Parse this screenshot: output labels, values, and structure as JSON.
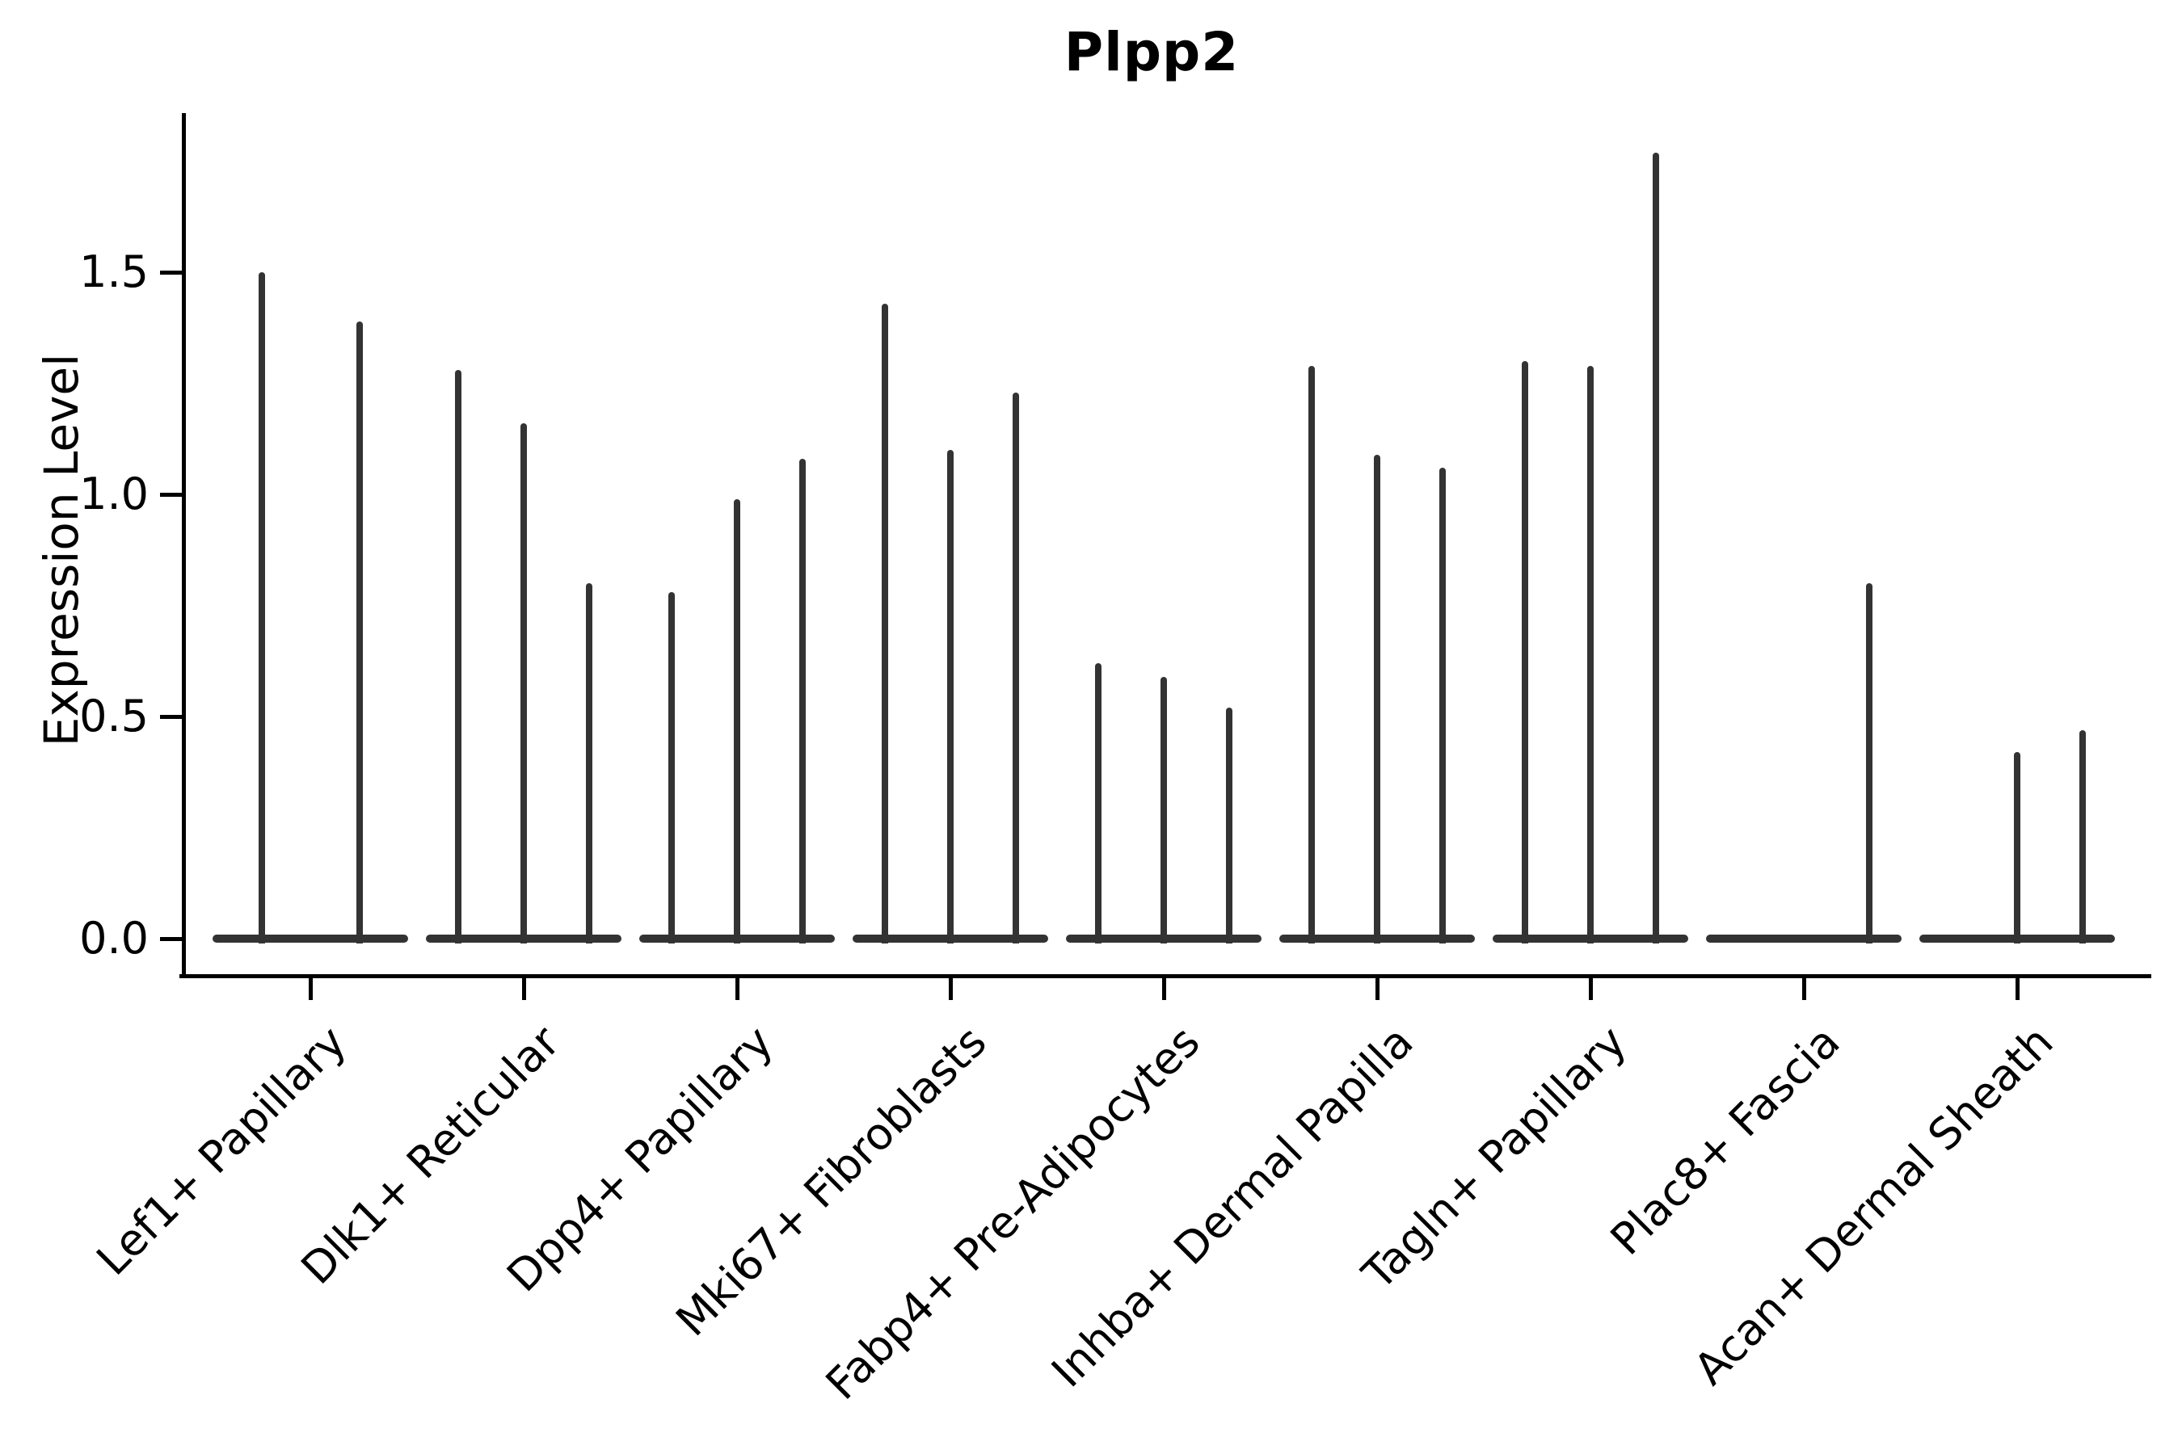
{
  "title": "Plpp2",
  "y_axis": {
    "label": "Expression Level",
    "tick_labels": [
      "0.0",
      "0.5",
      "1.0",
      "1.5"
    ]
  },
  "chart_data": {
    "type": "violin",
    "title": "Plpp2",
    "ylabel": "Expression Level",
    "xlabel": "",
    "ylim": [
      0,
      1.86
    ],
    "yticks": [
      0.0,
      0.5,
      1.0,
      1.5
    ],
    "ytick_labels": [
      "0.0",
      "0.5",
      "1.0",
      "1.5"
    ],
    "grid": false,
    "legend_position": "none",
    "categories": [
      "Lef1+ Papillary",
      "Dlk1+ Reticular",
      "Dpp4+ Papillary",
      "Mki67+ Fibroblasts",
      "Fabp4+ Pre-Adipocytes",
      "Inhba+ Dermal Papilla",
      "Tagln+ Papillary",
      "Plac8+ Fascia",
      "Acan+ Dermal Sheath"
    ],
    "groups": [
      {
        "category": "Lef1+ Papillary",
        "violin_max_values": [
          1.5,
          1.39
        ]
      },
      {
        "category": "Dlk1+ Reticular",
        "violin_max_values": [
          1.28,
          1.16,
          0.8
        ]
      },
      {
        "category": "Dpp4+ Papillary",
        "violin_max_values": [
          0.78,
          0.99,
          1.08
        ]
      },
      {
        "category": "Mki67+ Fibroblasts",
        "violin_max_values": [
          1.43,
          1.1,
          1.23
        ]
      },
      {
        "category": "Fabp4+ Pre-Adipocytes",
        "violin_max_values": [
          0.62,
          0.59,
          0.52
        ]
      },
      {
        "category": "Inhba+ Dermal Papilla",
        "violin_max_values": [
          1.29,
          1.09,
          1.06
        ]
      },
      {
        "category": "Tagln+ Papillary",
        "violin_max_values": [
          1.3,
          1.29,
          1.77
        ]
      },
      {
        "category": "Plac8+ Fascia",
        "violin_max_values": [
          0,
          0,
          0.8
        ]
      },
      {
        "category": "Acan+ Dermal Sheath",
        "violin_max_values": [
          0,
          0.42,
          0.47
        ]
      }
    ],
    "style_note": "Sparse expression violin plot: each violin collapses to a flat bar at 0 with a thin spike rising to its maximum value",
    "colors": {
      "violin": "#333333",
      "axis": "#000000",
      "text": "#000000",
      "background": "#ffffff"
    }
  }
}
